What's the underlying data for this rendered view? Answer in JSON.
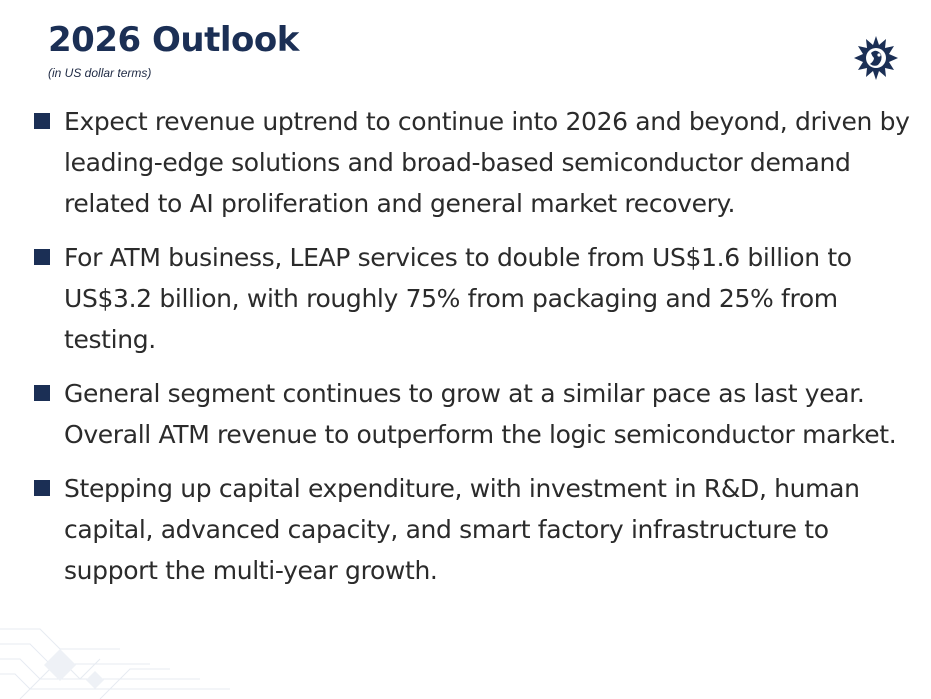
{
  "header": {
    "title": "2026 Outlook",
    "subtitle": "(in US dollar terms)",
    "logo_icon": "sunburst-face-logo-icon"
  },
  "bullets": [
    {
      "text": "Expect revenue uptrend to continue into 2026 and beyond, driven by leading-edge solutions and broad-based semiconductor demand related to AI proliferation and general market recovery."
    },
    {
      "text": "For ATM business, LEAP services to double from US$1.6 billion to US$3.2 billion, with roughly 75% from packaging and 25% from testing."
    },
    {
      "text": "General segment continues to grow at a similar pace as last year. Overall ATM revenue to outperform the logic semiconductor market."
    },
    {
      "text": "Stepping up capital expenditure, with investment in R&D, human capital, advanced capacity, and smart factory infrastructure to support the multi-year growth."
    }
  ],
  "colors": {
    "title": "#1b2f55",
    "bullet_marker": "#1b2f55",
    "body_text": "#2b2b2b"
  }
}
